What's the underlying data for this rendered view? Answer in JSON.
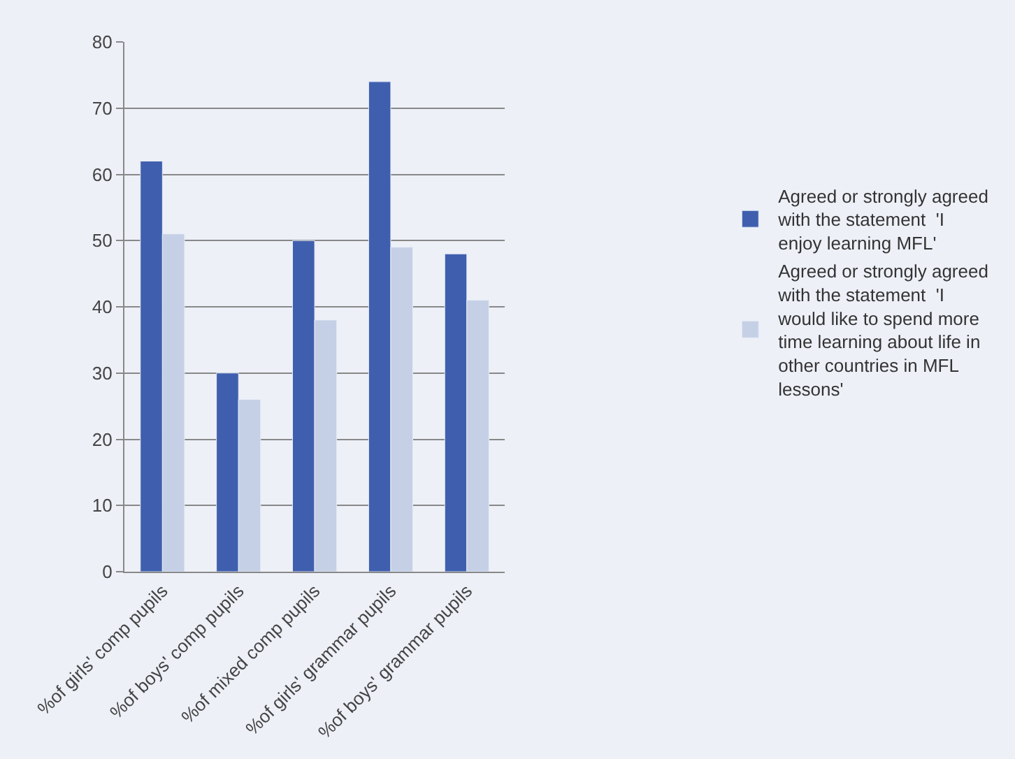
{
  "chart_data": {
    "type": "bar",
    "categories": [
      "%of girls' comp pupils",
      "%of boys' comp pupils",
      "%of mixed comp pupils",
      "%of girls' grammar pupils",
      "%of boys' grammar pupils"
    ],
    "series": [
      {
        "name": "Agreed or strongly agreed with the statement  'I enjoy learning MFL'",
        "color": "#3f5fae",
        "values": [
          62,
          30,
          50,
          74,
          48
        ]
      },
      {
        "name": "Agreed or strongly agreed with the statement  'I would like to spend more time learning about life in other countries in MFL lessons'",
        "color": "#c5d0e6",
        "values": [
          51,
          26,
          38,
          49,
          41
        ]
      }
    ],
    "ylim": [
      0,
      80
    ],
    "yticks": [
      0,
      10,
      20,
      30,
      40,
      50,
      60,
      70,
      80
    ],
    "grid": "y",
    "legend": "right"
  }
}
